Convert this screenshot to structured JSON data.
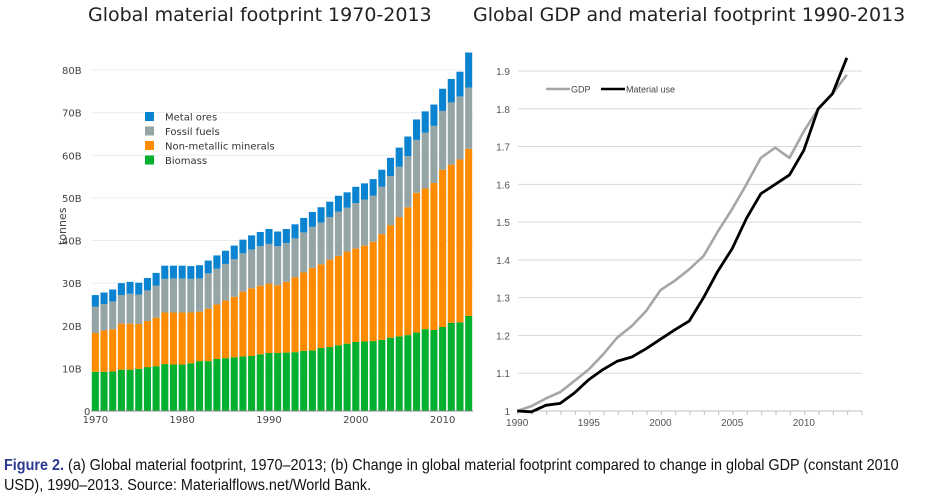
{
  "caption": {
    "label": "Figure 2.",
    "text": " (a) Global material footprint, 1970–2013; (b) Change in global material footprint compared to change in global GDP (constant 2010 USD), 1990–2013. Source: Materialflows.net/World Bank."
  },
  "chart_data": [
    {
      "type": "bar",
      "stacked": true,
      "title": "Global material footprint 1970-2013",
      "xlabel": "",
      "ylabel": "tonnes",
      "ylim": [
        0,
        80
      ],
      "y_unit": "billion tonnes",
      "yticks": [
        "0",
        "10B",
        "20B",
        "30B",
        "40B",
        "50B",
        "60B",
        "70B",
        "80B"
      ],
      "xticks": [
        "1970",
        "1980",
        "1990",
        "2000",
        "2010"
      ],
      "grid": true,
      "legend_position": "top-left",
      "categories": [
        1970,
        1971,
        1972,
        1973,
        1974,
        1975,
        1976,
        1977,
        1978,
        1979,
        1980,
        1981,
        1982,
        1983,
        1984,
        1985,
        1986,
        1987,
        1988,
        1989,
        1990,
        1991,
        1992,
        1993,
        1994,
        1995,
        1996,
        1997,
        1998,
        1999,
        2000,
        2001,
        2002,
        2003,
        2004,
        2005,
        2006,
        2007,
        2008,
        2009,
        2010,
        2011,
        2012,
        2013
      ],
      "series": [
        {
          "name": "Biomass",
          "color": "#00b02e",
          "values": [
            9.2,
            9.2,
            9.3,
            9.7,
            9.7,
            9.9,
            10.3,
            10.5,
            11.0,
            10.9,
            10.9,
            11.2,
            11.7,
            11.7,
            12.2,
            12.4,
            12.6,
            12.8,
            12.9,
            13.3,
            13.6,
            13.6,
            13.7,
            13.8,
            14.1,
            14.2,
            14.8,
            15.0,
            15.4,
            15.8,
            16.2,
            16.3,
            16.4,
            16.7,
            17.2,
            17.5,
            17.8,
            18.4,
            19.2,
            19.0,
            19.7,
            20.7,
            20.8,
            22.3
          ]
        },
        {
          "name": "Non-metallic minerals",
          "color": "#ff8c00",
          "values": [
            9.1,
            9.7,
            9.9,
            10.8,
            10.8,
            10.5,
            10.8,
            11.4,
            12.1,
            12.2,
            12.2,
            11.9,
            11.6,
            12.3,
            12.8,
            13.5,
            14.2,
            15.2,
            15.9,
            16.1,
            16.3,
            15.9,
            16.6,
            17.6,
            18.4,
            19.4,
            19.6,
            20.5,
            21.0,
            21.6,
            21.9,
            22.5,
            23.3,
            24.8,
            26.4,
            28.0,
            30.0,
            32.8,
            33.0,
            34.5,
            36.9,
            37.1,
            38.2,
            39.2
          ]
        },
        {
          "name": "Fossil fuels",
          "color": "#95a5a6",
          "values": [
            6.2,
            6.2,
            6.5,
            6.7,
            7.0,
            6.9,
            7.2,
            7.5,
            7.9,
            8.0,
            8.0,
            7.9,
            7.8,
            8.3,
            8.4,
            8.6,
            8.8,
            9.0,
            9.1,
            9.3,
            9.3,
            9.2,
            9.1,
            9.1,
            9.4,
            9.6,
            9.8,
            10.0,
            10.4,
            10.3,
            10.7,
            10.8,
            10.8,
            11.1,
            11.5,
            11.8,
            12.0,
            12.4,
            13.1,
            13.4,
            13.8,
            14.6,
            14.8,
            14.4
          ]
        },
        {
          "name": "Metal ores",
          "color": "#0a84d0",
          "values": [
            2.7,
            2.7,
            2.8,
            2.8,
            2.8,
            2.8,
            2.9,
            3.0,
            3.1,
            3.0,
            3.0,
            3.0,
            3.1,
            3.0,
            3.1,
            3.1,
            3.2,
            3.2,
            3.3,
            3.3,
            3.5,
            3.4,
            3.3,
            3.3,
            3.4,
            3.5,
            3.6,
            3.6,
            3.7,
            3.6,
            3.8,
            3.8,
            3.9,
            4.0,
            4.3,
            4.5,
            4.6,
            4.8,
            5.0,
            5.0,
            5.2,
            5.5,
            5.8,
            8.2
          ]
        }
      ]
    },
    {
      "type": "line",
      "title": "Global GDP and material footprint 1990-2013",
      "xlabel": "",
      "ylabel": "",
      "ylim": [
        1,
        1.9
      ],
      "xlim": [
        1990,
        2013
      ],
      "yticks": [
        "1",
        "1.1",
        "1.2",
        "1.3",
        "1.4",
        "1.5",
        "1.6",
        "1.7",
        "1.8",
        "1.9"
      ],
      "xticks": [
        "1990",
        "1995",
        "2000",
        "2005",
        "2010"
      ],
      "grid": true,
      "legend_position": "top-left",
      "x": [
        1990,
        1991,
        1992,
        1993,
        1994,
        1995,
        1996,
        1997,
        1998,
        1999,
        2000,
        2001,
        2002,
        2003,
        2004,
        2005,
        2006,
        2007,
        2008,
        2009,
        2010,
        2011,
        2012,
        2013
      ],
      "series": [
        {
          "name": "GDP",
          "color": "#a6a6a6",
          "values": [
            1.0,
            1.013,
            1.033,
            1.05,
            1.08,
            1.11,
            1.15,
            1.195,
            1.225,
            1.265,
            1.32,
            1.345,
            1.375,
            1.41,
            1.475,
            1.535,
            1.6,
            1.67,
            1.697,
            1.67,
            1.74,
            1.8,
            1.84,
            1.89
          ]
        },
        {
          "name": "Material use",
          "color": "#000000",
          "values": [
            1.0,
            0.998,
            1.015,
            1.02,
            1.048,
            1.083,
            1.11,
            1.132,
            1.143,
            1.165,
            1.19,
            1.215,
            1.238,
            1.3,
            1.37,
            1.43,
            1.51,
            1.575,
            1.6,
            1.625,
            1.69,
            1.8,
            1.84,
            1.935
          ]
        }
      ]
    }
  ]
}
